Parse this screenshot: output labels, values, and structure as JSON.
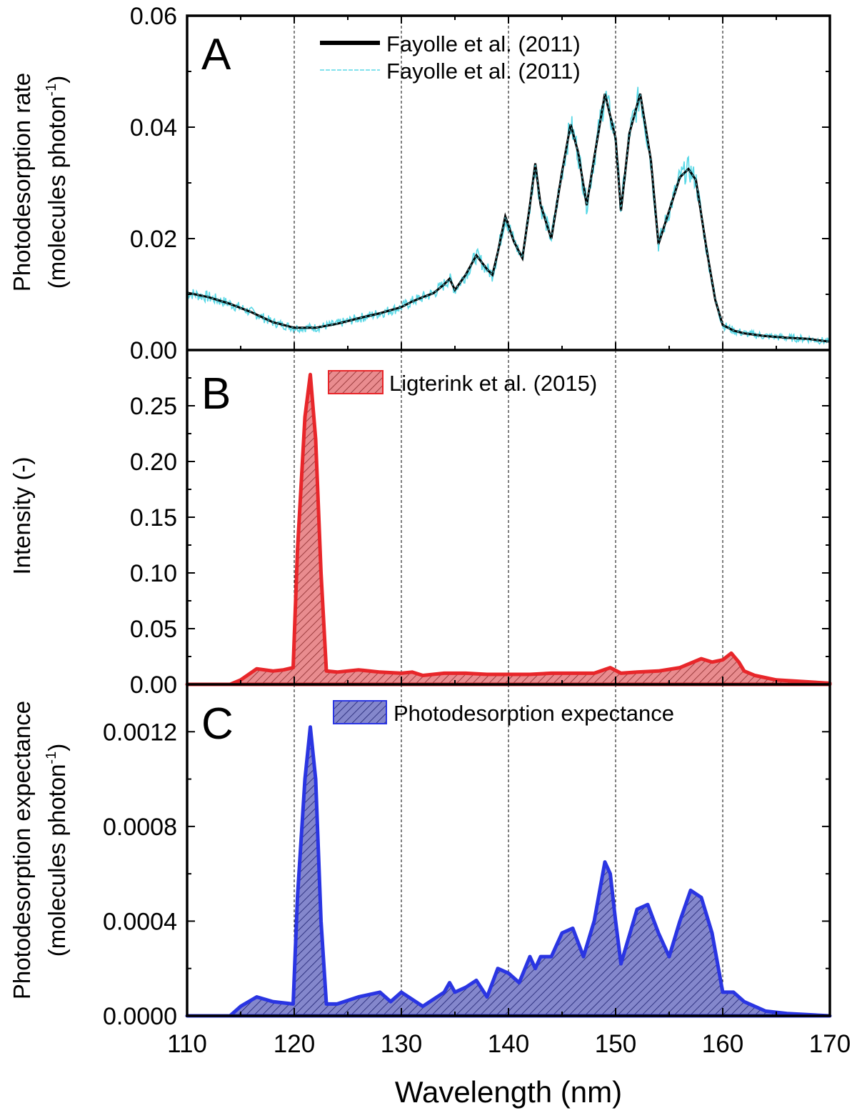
{
  "xaxis": {
    "label": "Wavelength (nm)",
    "range": [
      110,
      170
    ],
    "ticks": [
      "110",
      "120",
      "130",
      "140",
      "150",
      "160",
      "170"
    ],
    "tick_values": [
      110,
      120,
      130,
      140,
      150,
      160,
      170
    ],
    "gridlines": [
      120,
      130,
      140,
      150,
      160
    ]
  },
  "colors": {
    "cyan": "#58d8e6",
    "red": "#e8262a",
    "red_fill": "#e98c8f",
    "blue": "#2a35e2",
    "blue_fill": "#7f82c8",
    "black": "#000000"
  },
  "chart_data": [
    {
      "panel_letter": "A",
      "type": "line",
      "ylabel_line1": "Photodesorption rate",
      "ylabel_line2_pre": "(molecules photon",
      "ylabel_sup": "-1",
      "ylabel_line2_post": ")",
      "ylim": [
        0,
        0.06
      ],
      "yticks": [
        "0.00",
        "0.02",
        "0.04",
        "0.06"
      ],
      "ytick_values": [
        0,
        0.02,
        0.04,
        0.06
      ],
      "grid": "vertical dashed at 120-160 nm",
      "legend_position": "top-center",
      "series": [
        {
          "name": "Fayolle et al. (2011)",
          "style": "thick-black-line",
          "x": [
            110,
            112,
            114,
            116,
            118,
            120,
            122,
            124,
            126,
            128,
            130,
            131,
            132,
            133,
            134,
            134.5,
            135,
            136,
            137,
            138,
            138.5,
            139,
            139.7,
            140.5,
            141.3,
            142,
            142.5,
            143,
            144,
            145,
            145.8,
            146.5,
            147.3,
            148,
            149,
            150,
            150.5,
            151.3,
            152.3,
            153.3,
            154,
            155,
            156,
            156.8,
            157.5,
            158.5,
            159.3,
            160,
            161,
            162,
            164,
            166,
            168,
            170
          ],
          "values": [
            0.0103,
            0.0095,
            0.0083,
            0.0068,
            0.005,
            0.004,
            0.004,
            0.0047,
            0.0057,
            0.0066,
            0.0077,
            0.0087,
            0.0095,
            0.0102,
            0.0118,
            0.0128,
            0.0108,
            0.0135,
            0.017,
            0.0145,
            0.0135,
            0.0175,
            0.024,
            0.0195,
            0.0165,
            0.026,
            0.0335,
            0.026,
            0.02,
            0.032,
            0.0405,
            0.0355,
            0.026,
            0.0345,
            0.046,
            0.038,
            0.025,
            0.039,
            0.046,
            0.034,
            0.019,
            0.025,
            0.031,
            0.0325,
            0.0305,
            0.018,
            0.009,
            0.0045,
            0.0035,
            0.003,
            0.0025,
            0.0022,
            0.002,
            0.0015
          ]
        },
        {
          "name": "Fayolle et al. (2011)",
          "style": "thin-cyan-noisy-line"
        }
      ]
    },
    {
      "panel_letter": "B",
      "type": "area",
      "ylabel": "Intensity (-)",
      "ylim": [
        0,
        0.3
      ],
      "yticks": [
        "0.00",
        "0.05",
        "0.10",
        "0.15",
        "0.20",
        "0.25"
      ],
      "ytick_values": [
        0,
        0.05,
        0.1,
        0.15,
        0.2,
        0.25
      ],
      "legend_position": "top-center",
      "series": [
        {
          "name": "Ligterink et al. (2015)",
          "x": [
            110,
            114,
            115,
            116.5,
            118,
            119,
            119.9,
            120.3,
            121,
            121.5,
            122,
            122.5,
            123,
            124,
            126,
            128,
            130,
            131,
            132,
            134,
            136,
            138,
            140,
            142,
            144,
            146,
            148,
            149.5,
            150.5,
            152,
            154,
            156,
            158,
            159,
            160,
            160.8,
            161.5,
            162,
            163,
            165,
            170
          ],
          "values": [
            0,
            0,
            0.004,
            0.014,
            0.012,
            0.013,
            0.015,
            0.12,
            0.24,
            0.278,
            0.22,
            0.1,
            0.012,
            0.011,
            0.013,
            0.011,
            0.01,
            0.011,
            0.008,
            0.01,
            0.01,
            0.009,
            0.009,
            0.009,
            0.01,
            0.01,
            0.01,
            0.015,
            0.01,
            0.011,
            0.012,
            0.015,
            0.023,
            0.02,
            0.022,
            0.028,
            0.02,
            0.012,
            0.008,
            0.004,
            0.001
          ]
        }
      ]
    },
    {
      "panel_letter": "C",
      "type": "area",
      "ylabel_line1": "Photodesorption expectance",
      "ylabel_line2_pre": "(molecules photon",
      "ylabel_sup": "-1",
      "ylabel_line2_post": ")",
      "ylim": [
        0,
        0.0014
      ],
      "yticks": [
        "0.0000",
        "0.0004",
        "0.0008",
        "0.0012"
      ],
      "ytick_values": [
        0,
        0.0004,
        0.0008,
        0.0012
      ],
      "legend_position": "top-center",
      "series": [
        {
          "name": "Photodesorption expectance",
          "x": [
            110,
            114,
            115,
            116.5,
            118,
            119.9,
            120.3,
            121,
            121.5,
            122,
            122.5,
            123,
            124,
            126,
            128,
            129,
            130,
            132,
            134,
            134.5,
            135,
            136,
            137,
            138,
            139,
            140,
            141,
            142,
            142.5,
            143,
            144,
            145,
            146,
            147,
            148,
            149,
            149.5,
            150,
            150.5,
            152,
            153,
            154,
            155,
            156,
            157,
            158,
            159,
            160,
            161,
            162,
            164,
            166,
            170
          ],
          "values": [
            0,
            0,
            4e-05,
            8e-05,
            6e-05,
            5e-05,
            0.0005,
            0.001,
            0.00122,
            0.001,
            0.0004,
            5e-05,
            5e-05,
            8e-05,
            0.0001,
            6e-05,
            0.0001,
            4e-05,
            0.0001,
            0.00014,
            0.0001,
            0.00012,
            0.00015,
            8e-05,
            0.0002,
            0.00018,
            0.00014,
            0.00025,
            0.0002,
            0.00025,
            0.00025,
            0.00035,
            0.00037,
            0.00025,
            0.0004,
            0.00065,
            0.0006,
            0.0004,
            0.00022,
            0.00045,
            0.00047,
            0.00035,
            0.00025,
            0.0004,
            0.00053,
            0.0005,
            0.00035,
            0.0001,
            0.0001,
            6e-05,
            2e-05,
            1e-05,
            0
          ]
        }
      ]
    }
  ]
}
